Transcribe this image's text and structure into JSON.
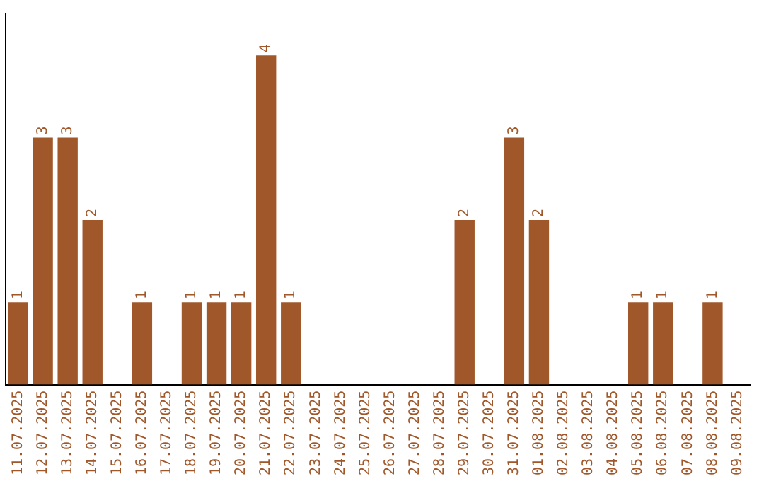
{
  "chart_data": {
    "type": "bar",
    "categories": [
      "11.07.2025",
      "12.07.2025",
      "13.07.2025",
      "14.07.2025",
      "15.07.2025",
      "16.07.2025",
      "17.07.2025",
      "18.07.2025",
      "19.07.2025",
      "20.07.2025",
      "21.07.2025",
      "22.07.2025",
      "23.07.2025",
      "24.07.2025",
      "25.07.2025",
      "26.07.2025",
      "27.07.2025",
      "28.07.2025",
      "29.07.2025",
      "30.07.2025",
      "31.07.2025",
      "01.08.2025",
      "02.08.2025",
      "03.08.2025",
      "04.08.2025",
      "05.08.2025",
      "06.08.2025",
      "07.08.2025",
      "08.08.2025",
      "09.08.2025"
    ],
    "values": [
      1,
      3,
      3,
      2,
      0,
      1,
      0,
      1,
      1,
      1,
      4,
      1,
      0,
      0,
      0,
      0,
      0,
      0,
      2,
      0,
      3,
      2,
      0,
      0,
      0,
      1,
      1,
      0,
      1,
      0
    ],
    "value_labels": [
      "1",
      "3",
      "3",
      "2",
      null,
      "1",
      null,
      "1",
      "1",
      "1",
      "4",
      "1",
      null,
      null,
      null,
      null,
      null,
      null,
      "2",
      null,
      "3",
      "2",
      null,
      null,
      null,
      "1",
      "1",
      null,
      "1",
      null
    ],
    "color": "#a0582b",
    "grid": false,
    "legend": false,
    "tick_labels": "x"
  }
}
